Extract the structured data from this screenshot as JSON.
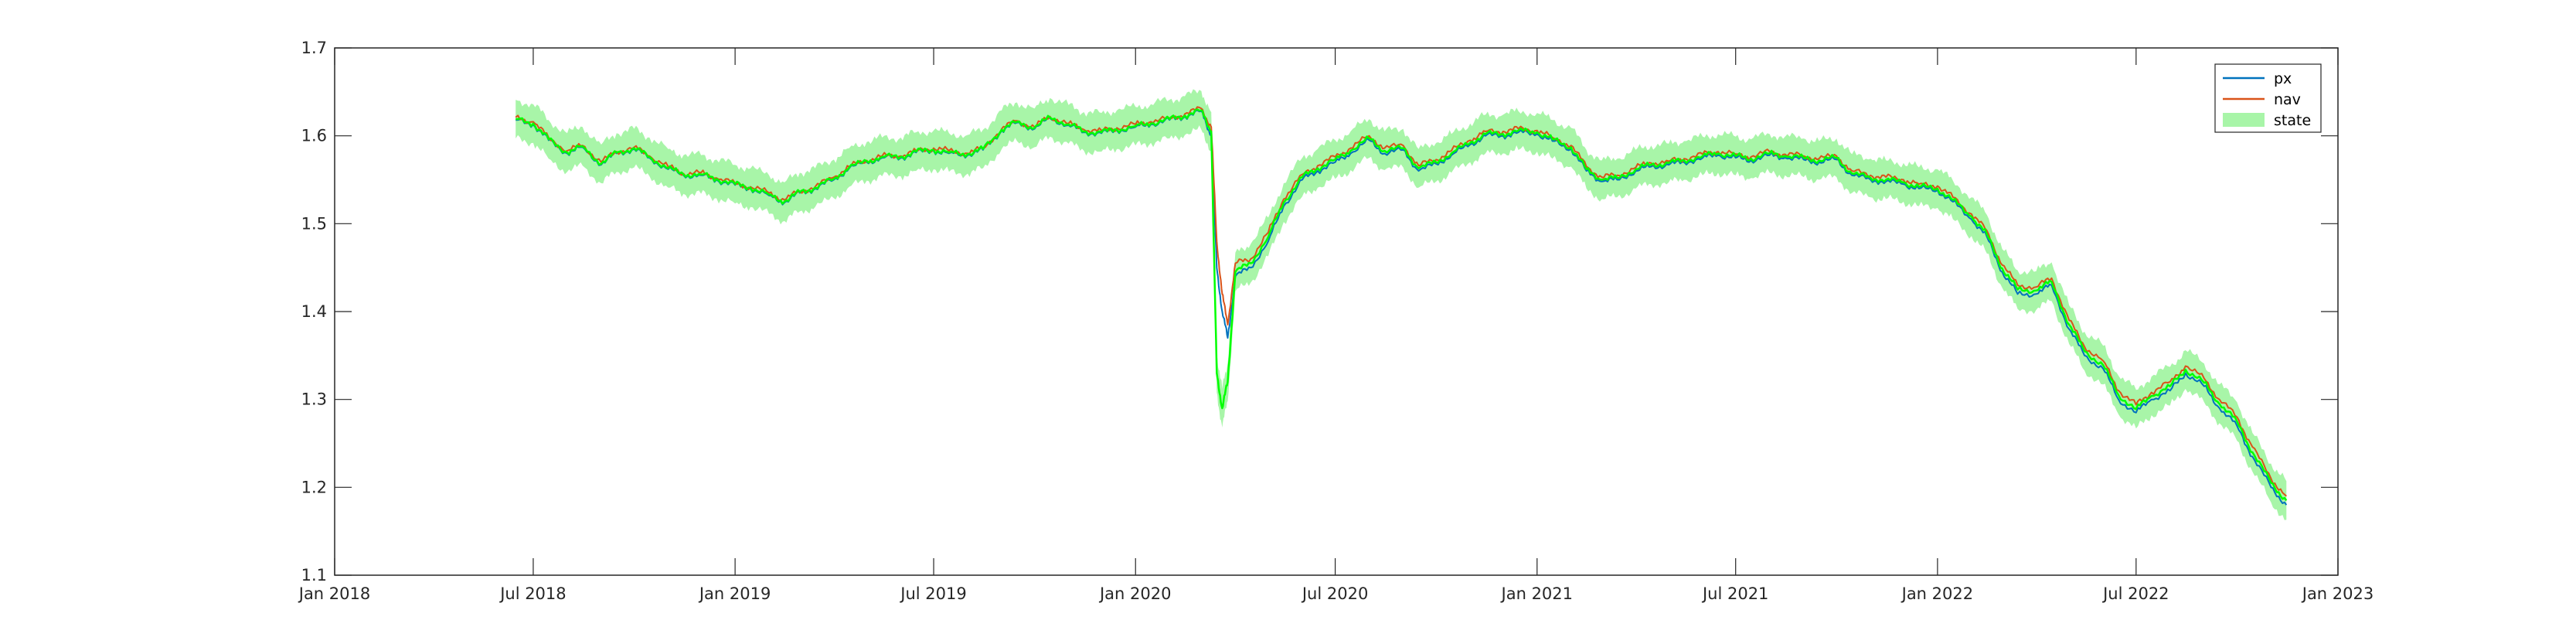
{
  "chart_data": {
    "type": "line",
    "title": "",
    "xlabel": "",
    "ylabel": "",
    "xlim": [
      "2018-01-01",
      "2023-01-01"
    ],
    "ylim": [
      1.1,
      1.7
    ],
    "x_ticks": [
      "Jan 2018",
      "Jul 2018",
      "Jan 2019",
      "Jul 2019",
      "Jan 2020",
      "Jul 2020",
      "Jan 2021",
      "Jul 2021",
      "Jan 2022",
      "Jul 2022",
      "Jan 2023"
    ],
    "y_ticks": [
      "1.1",
      "1.2",
      "1.3",
      "1.4",
      "1.5",
      "1.6",
      "1.7"
    ],
    "grid": false,
    "legend": {
      "position": "top-right",
      "entries": [
        "px",
        "nav",
        "state"
      ]
    },
    "colors": {
      "px": "#0072BD",
      "nav": "#D95319",
      "state_line": "#00FF00",
      "state_band": "#A8F5A8",
      "axis": "#262626"
    },
    "band_halfwidth": 0.022,
    "series": [
      {
        "name": "px",
        "x": [
          "2018-06-15",
          "2018-07-01",
          "2018-07-15",
          "2018-08-01",
          "2018-08-15",
          "2018-09-01",
          "2018-09-15",
          "2018-10-01",
          "2018-10-15",
          "2018-11-01",
          "2018-11-15",
          "2018-12-01",
          "2018-12-15",
          "2019-01-01",
          "2019-01-15",
          "2019-02-01",
          "2019-02-15",
          "2019-03-01",
          "2019-03-15",
          "2019-04-01",
          "2019-04-15",
          "2019-05-01",
          "2019-05-15",
          "2019-06-01",
          "2019-06-15",
          "2019-07-01",
          "2019-07-15",
          "2019-08-01",
          "2019-08-15",
          "2019-09-01",
          "2019-09-15",
          "2019-10-01",
          "2019-10-15",
          "2019-11-01",
          "2019-11-15",
          "2019-12-01",
          "2019-12-15",
          "2020-01-01",
          "2020-01-15",
          "2020-02-01",
          "2020-02-15",
          "2020-03-01",
          "2020-03-10",
          "2020-03-15",
          "2020-03-20",
          "2020-03-25",
          "2020-04-01",
          "2020-04-15",
          "2020-05-01",
          "2020-05-15",
          "2020-06-01",
          "2020-06-15",
          "2020-07-01",
          "2020-07-15",
          "2020-08-01",
          "2020-08-15",
          "2020-09-01",
          "2020-09-15",
          "2020-10-01",
          "2020-10-15",
          "2020-11-01",
          "2020-11-15",
          "2020-12-01",
          "2020-12-15",
          "2021-01-01",
          "2021-01-15",
          "2021-02-01",
          "2021-02-15",
          "2021-03-01",
          "2021-03-15",
          "2021-04-01",
          "2021-04-15",
          "2021-05-01",
          "2021-05-15",
          "2021-06-01",
          "2021-06-15",
          "2021-07-01",
          "2021-07-15",
          "2021-08-01",
          "2021-08-15",
          "2021-09-01",
          "2021-09-15",
          "2021-10-01",
          "2021-10-15",
          "2021-11-01",
          "2021-11-15",
          "2021-12-01",
          "2021-12-15",
          "2022-01-01",
          "2022-01-15",
          "2022-02-01",
          "2022-02-15",
          "2022-03-01",
          "2022-03-15",
          "2022-04-01",
          "2022-04-15",
          "2022-05-01",
          "2022-05-15",
          "2022-06-01",
          "2022-06-15",
          "2022-07-01",
          "2022-07-15",
          "2022-08-01",
          "2022-08-15",
          "2022-09-01",
          "2022-09-15",
          "2022-10-01",
          "2022-10-15",
          "2022-11-01",
          "2022-11-15"
        ],
        "values": [
          1.618,
          1.613,
          1.595,
          1.58,
          1.587,
          1.567,
          1.58,
          1.585,
          1.575,
          1.562,
          1.555,
          1.555,
          1.55,
          1.544,
          1.54,
          1.532,
          1.524,
          1.535,
          1.54,
          1.55,
          1.563,
          1.57,
          1.575,
          1.575,
          1.581,
          1.583,
          1.58,
          1.578,
          1.584,
          1.606,
          1.615,
          1.608,
          1.62,
          1.612,
          1.604,
          1.603,
          1.606,
          1.61,
          1.613,
          1.618,
          1.622,
          1.628,
          1.6,
          1.45,
          1.4,
          1.37,
          1.44,
          1.45,
          1.48,
          1.52,
          1.55,
          1.56,
          1.57,
          1.58,
          1.595,
          1.58,
          1.584,
          1.56,
          1.568,
          1.578,
          1.59,
          1.6,
          1.6,
          1.604,
          1.602,
          1.594,
          1.585,
          1.56,
          1.548,
          1.55,
          1.56,
          1.565,
          1.567,
          1.57,
          1.575,
          1.578,
          1.575,
          1.572,
          1.578,
          1.575,
          1.573,
          1.57,
          1.573,
          1.555,
          1.55,
          1.548,
          1.545,
          1.54,
          1.538,
          1.525,
          1.505,
          1.485,
          1.445,
          1.42,
          1.42,
          1.43,
          1.38,
          1.35,
          1.335,
          1.3,
          1.285,
          1.3,
          1.31,
          1.33,
          1.315,
          1.29,
          1.27,
          1.235,
          1.2,
          1.18
        ]
      },
      {
        "name": "nav",
        "x": [
          "2018-06-15",
          "2018-07-01",
          "2018-07-15",
          "2018-08-01",
          "2018-08-15",
          "2018-09-01",
          "2018-09-15",
          "2018-10-01",
          "2018-10-15",
          "2018-11-01",
          "2018-11-15",
          "2018-12-01",
          "2018-12-15",
          "2019-01-01",
          "2019-01-15",
          "2019-02-01",
          "2019-02-15",
          "2019-03-01",
          "2019-03-15",
          "2019-04-01",
          "2019-04-15",
          "2019-05-01",
          "2019-05-15",
          "2019-06-01",
          "2019-06-15",
          "2019-07-01",
          "2019-07-15",
          "2019-08-01",
          "2019-08-15",
          "2019-09-01",
          "2019-09-15",
          "2019-10-01",
          "2019-10-15",
          "2019-11-01",
          "2019-11-15",
          "2019-12-01",
          "2019-12-15",
          "2020-01-01",
          "2020-01-15",
          "2020-02-01",
          "2020-02-15",
          "2020-03-01",
          "2020-03-10",
          "2020-03-15",
          "2020-03-20",
          "2020-03-25",
          "2020-04-01",
          "2020-04-15",
          "2020-05-01",
          "2020-05-15",
          "2020-06-01",
          "2020-06-15",
          "2020-07-01",
          "2020-07-15",
          "2020-08-01",
          "2020-08-15",
          "2020-09-01",
          "2020-09-15",
          "2020-10-01",
          "2020-10-15",
          "2020-11-01",
          "2020-11-15",
          "2020-12-01",
          "2020-12-15",
          "2021-01-01",
          "2021-01-15",
          "2021-02-01",
          "2021-02-15",
          "2021-03-01",
          "2021-03-15",
          "2021-04-01",
          "2021-04-15",
          "2021-05-01",
          "2021-05-15",
          "2021-06-01",
          "2021-06-15",
          "2021-07-01",
          "2021-07-15",
          "2021-08-01",
          "2021-08-15",
          "2021-09-01",
          "2021-09-15",
          "2021-10-01",
          "2021-10-15",
          "2021-11-01",
          "2021-11-15",
          "2021-12-01",
          "2021-12-15",
          "2022-01-01",
          "2022-01-15",
          "2022-02-01",
          "2022-02-15",
          "2022-03-01",
          "2022-03-15",
          "2022-04-01",
          "2022-04-15",
          "2022-05-01",
          "2022-05-15",
          "2022-06-01",
          "2022-06-15",
          "2022-07-01",
          "2022-07-15",
          "2022-08-01",
          "2022-08-15",
          "2022-09-01",
          "2022-09-15",
          "2022-10-01",
          "2022-10-15",
          "2022-11-01",
          "2022-11-15"
        ],
        "values": [
          1.621,
          1.616,
          1.598,
          1.583,
          1.589,
          1.57,
          1.582,
          1.587,
          1.577,
          1.565,
          1.557,
          1.558,
          1.552,
          1.546,
          1.542,
          1.535,
          1.527,
          1.537,
          1.542,
          1.553,
          1.565,
          1.572,
          1.577,
          1.577,
          1.583,
          1.586,
          1.583,
          1.58,
          1.586,
          1.608,
          1.617,
          1.61,
          1.622,
          1.614,
          1.607,
          1.606,
          1.609,
          1.613,
          1.616,
          1.62,
          1.625,
          1.631,
          1.61,
          1.48,
          1.42,
          1.385,
          1.455,
          1.46,
          1.49,
          1.528,
          1.556,
          1.566,
          1.576,
          1.586,
          1.6,
          1.586,
          1.589,
          1.566,
          1.573,
          1.583,
          1.595,
          1.605,
          1.605,
          1.608,
          1.606,
          1.598,
          1.589,
          1.565,
          1.553,
          1.555,
          1.564,
          1.569,
          1.571,
          1.574,
          1.579,
          1.582,
          1.579,
          1.576,
          1.582,
          1.579,
          1.577,
          1.574,
          1.577,
          1.56,
          1.555,
          1.553,
          1.55,
          1.545,
          1.543,
          1.53,
          1.511,
          1.492,
          1.453,
          1.43,
          1.428,
          1.438,
          1.39,
          1.36,
          1.344,
          1.31,
          1.294,
          1.308,
          1.32,
          1.338,
          1.324,
          1.3,
          1.28,
          1.246,
          1.21,
          1.19
        ]
      },
      {
        "name": "state",
        "x": [
          "2018-06-15",
          "2018-07-01",
          "2018-07-15",
          "2018-08-01",
          "2018-08-15",
          "2018-09-01",
          "2018-09-15",
          "2018-10-01",
          "2018-10-15",
          "2018-11-01",
          "2018-11-15",
          "2018-12-01",
          "2018-12-15",
          "2019-01-01",
          "2019-01-15",
          "2019-02-01",
          "2019-02-15",
          "2019-03-01",
          "2019-03-15",
          "2019-04-01",
          "2019-04-15",
          "2019-05-01",
          "2019-05-15",
          "2019-06-01",
          "2019-06-15",
          "2019-07-01",
          "2019-07-15",
          "2019-08-01",
          "2019-08-15",
          "2019-09-01",
          "2019-09-15",
          "2019-10-01",
          "2019-10-15",
          "2019-11-01",
          "2019-11-15",
          "2019-12-01",
          "2019-12-15",
          "2020-01-01",
          "2020-01-15",
          "2020-02-01",
          "2020-02-15",
          "2020-03-01",
          "2020-03-10",
          "2020-03-15",
          "2020-03-20",
          "2020-03-25",
          "2020-04-01",
          "2020-04-15",
          "2020-05-01",
          "2020-05-15",
          "2020-06-01",
          "2020-06-15",
          "2020-07-01",
          "2020-07-15",
          "2020-08-01",
          "2020-08-15",
          "2020-09-01",
          "2020-09-15",
          "2020-10-01",
          "2020-10-15",
          "2020-11-01",
          "2020-11-15",
          "2020-12-01",
          "2020-12-15",
          "2021-01-01",
          "2021-01-15",
          "2021-02-01",
          "2021-02-15",
          "2021-03-01",
          "2021-03-15",
          "2021-04-01",
          "2021-04-15",
          "2021-05-01",
          "2021-05-15",
          "2021-06-01",
          "2021-06-15",
          "2021-07-01",
          "2021-07-15",
          "2021-08-01",
          "2021-08-15",
          "2021-09-01",
          "2021-09-15",
          "2021-10-01",
          "2021-10-15",
          "2021-11-01",
          "2021-11-15",
          "2021-12-01",
          "2021-12-15",
          "2022-01-01",
          "2022-01-15",
          "2022-02-01",
          "2022-02-15",
          "2022-03-01",
          "2022-03-15",
          "2022-04-01",
          "2022-04-15",
          "2022-05-01",
          "2022-05-15",
          "2022-06-01",
          "2022-06-15",
          "2022-07-01",
          "2022-07-15",
          "2022-08-01",
          "2022-08-15",
          "2022-09-01",
          "2022-09-15",
          "2022-10-01",
          "2022-10-15",
          "2022-11-01",
          "2022-11-15"
        ],
        "values": [
          1.619,
          1.614,
          1.596,
          1.581,
          1.588,
          1.568,
          1.581,
          1.586,
          1.576,
          1.563,
          1.556,
          1.556,
          1.551,
          1.545,
          1.541,
          1.533,
          1.525,
          1.536,
          1.541,
          1.551,
          1.564,
          1.571,
          1.576,
          1.576,
          1.582,
          1.584,
          1.581,
          1.579,
          1.585,
          1.607,
          1.616,
          1.609,
          1.621,
          1.613,
          1.605,
          1.604,
          1.607,
          1.611,
          1.614,
          1.619,
          1.623,
          1.629,
          1.605,
          1.33,
          1.29,
          1.32,
          1.445,
          1.455,
          1.485,
          1.524,
          1.553,
          1.563,
          1.573,
          1.583,
          1.597,
          1.583,
          1.586,
          1.563,
          1.57,
          1.58,
          1.592,
          1.602,
          1.602,
          1.606,
          1.604,
          1.596,
          1.587,
          1.562,
          1.55,
          1.552,
          1.562,
          1.567,
          1.569,
          1.572,
          1.577,
          1.58,
          1.577,
          1.574,
          1.58,
          1.577,
          1.575,
          1.572,
          1.575,
          1.557,
          1.552,
          1.55,
          1.547,
          1.542,
          1.54,
          1.527,
          1.508,
          1.488,
          1.449,
          1.425,
          1.424,
          1.434,
          1.385,
          1.355,
          1.339,
          1.305,
          1.289,
          1.304,
          1.315,
          1.334,
          1.319,
          1.295,
          1.275,
          1.24,
          1.205,
          1.185
        ]
      }
    ]
  }
}
